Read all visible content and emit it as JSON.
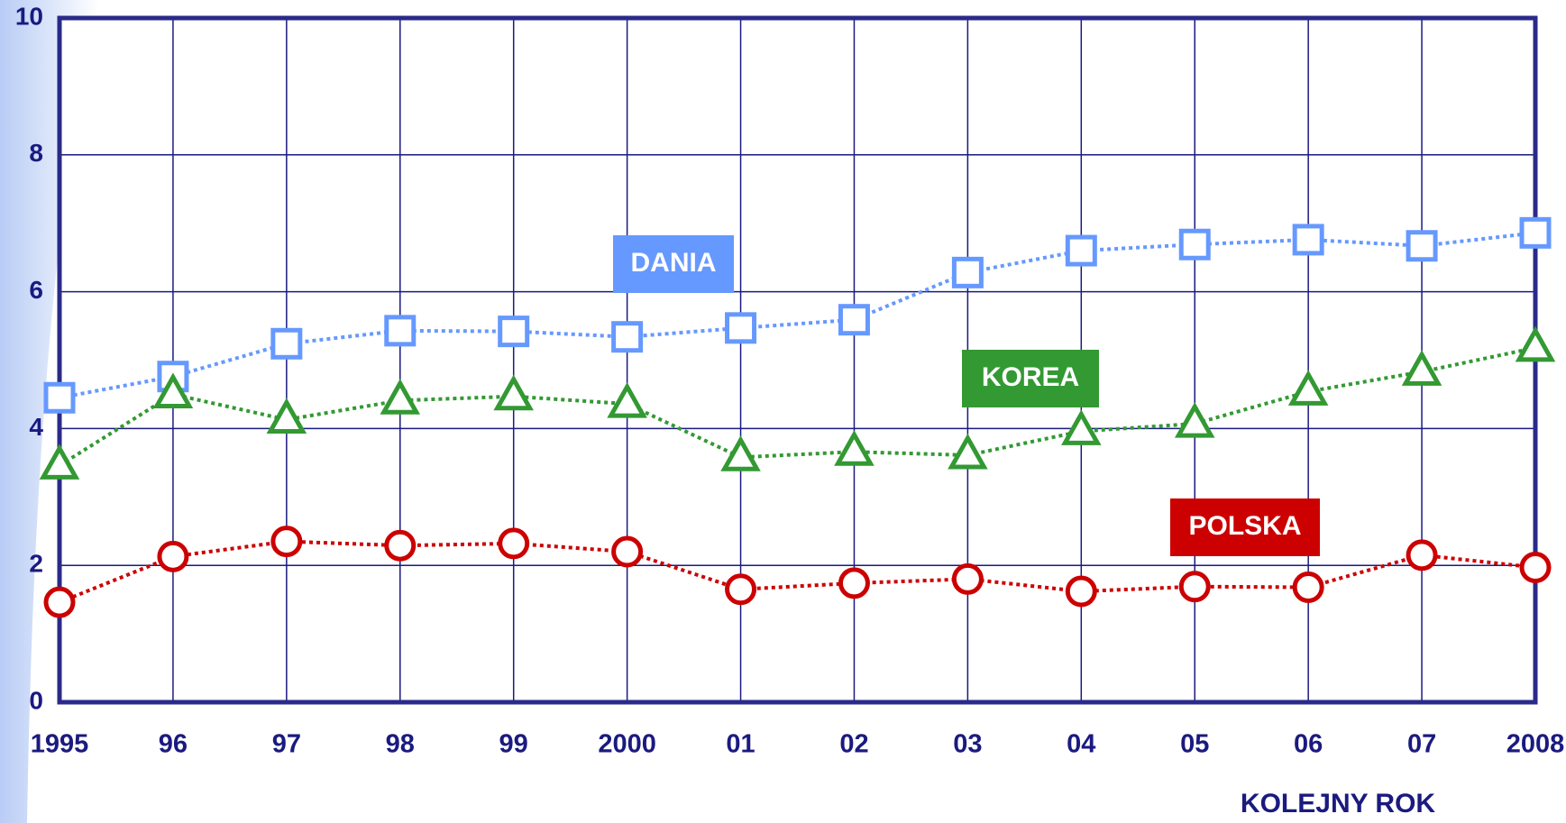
{
  "chart_data": {
    "type": "line",
    "x_label": "KOLEJNY ROK",
    "categories": [
      "1995",
      "96",
      "97",
      "98",
      "99",
      "2000",
      "01",
      "02",
      "03",
      "04",
      "05",
      "06",
      "07",
      "2008"
    ],
    "series": [
      {
        "name": "DANIA",
        "color": "#6699ff",
        "marker": "square",
        "values": [
          4.45,
          4.76,
          5.24,
          5.43,
          5.42,
          5.34,
          5.47,
          5.59,
          6.28,
          6.6,
          6.69,
          6.76,
          6.67,
          6.86
        ]
      },
      {
        "name": "KOREA",
        "color": "#339933",
        "marker": "triangle",
        "values": [
          3.46,
          4.5,
          4.13,
          4.41,
          4.47,
          4.36,
          3.58,
          3.66,
          3.61,
          3.96,
          4.07,
          4.54,
          4.83,
          5.18
        ]
      },
      {
        "name": "POLSKA",
        "color": "#cc0000",
        "marker": "circle",
        "values": [
          1.46,
          2.13,
          2.35,
          2.29,
          2.32,
          2.2,
          1.65,
          1.74,
          1.8,
          1.62,
          1.69,
          1.68,
          2.15,
          1.97
        ]
      }
    ],
    "ylim": [
      0,
      10
    ],
    "yticks": [
      0,
      2,
      4,
      6,
      8,
      10
    ],
    "grid": true
  }
}
